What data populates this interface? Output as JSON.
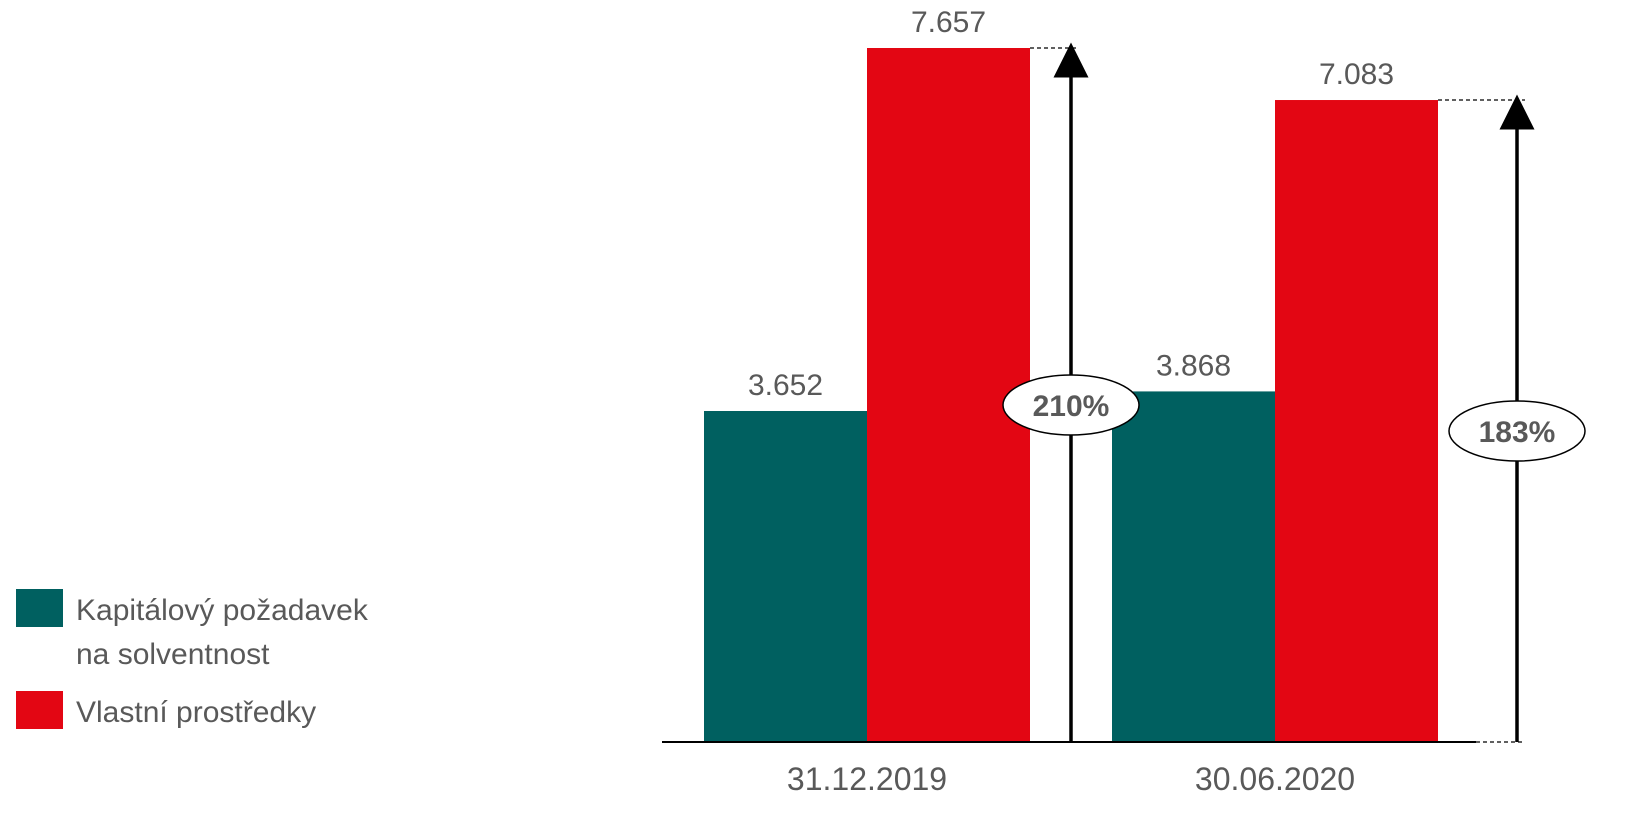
{
  "chart_data": {
    "type": "bar",
    "categories": [
      "31.12.2019",
      "30.06.2020"
    ],
    "series": [
      {
        "name": "Kapitálový požadavek na solventnost",
        "values": [
          3.652,
          3.868
        ],
        "labels": [
          "3.652",
          "3.868"
        ],
        "color": "#006060"
      },
      {
        "name": "Vlastní prostředky",
        "values": [
          7.657,
          7.083
        ],
        "labels": [
          "7.657",
          "7.083"
        ],
        "color": "#e30613"
      }
    ],
    "ratios": [
      "210%",
      "183%"
    ],
    "ylim": [
      0,
      8.3
    ],
    "grid": false,
    "legend_position": "bottom-left",
    "legend": {
      "entries": [
        {
          "lines": [
            "Kapitálový požadavek",
            "na solventnost"
          ],
          "color": "#006060"
        },
        {
          "lines": [
            "Vlastní prostředky"
          ],
          "color": "#e30613"
        }
      ]
    },
    "axis_color": "#000000"
  }
}
